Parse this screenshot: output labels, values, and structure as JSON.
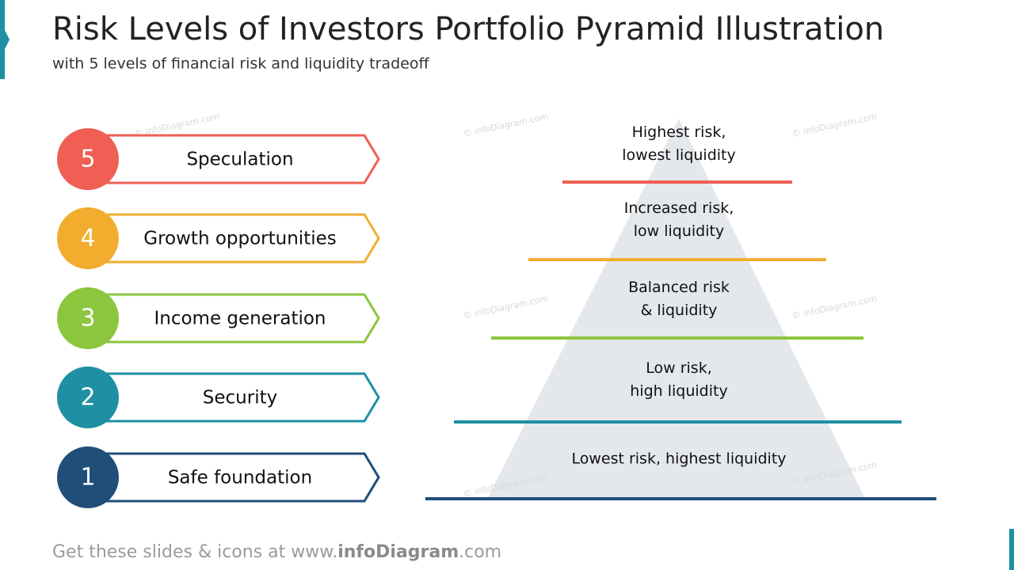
{
  "header": {
    "title": "Risk Levels of Investors Portfolio Pyramid Illustration",
    "subtitle": "with 5 levels of financial  risk and liquidity  tradeoff"
  },
  "levels": [
    {
      "number": "5",
      "label": "Speculation",
      "color": "#ef5f54",
      "description": [
        "Highest risk,",
        "lowest liquidity"
      ]
    },
    {
      "number": "4",
      "label": "Growth opportunities",
      "color": "#f2ad2f",
      "description": [
        "Increased risk,",
        "low liquidity"
      ]
    },
    {
      "number": "3",
      "label": "Income generation",
      "color": "#8cc63f",
      "description": [
        "Balanced risk",
        "& liquidity"
      ]
    },
    {
      "number": "2",
      "label": "Security",
      "color": "#1f8fa3",
      "description": [
        "Low risk,",
        "high liquidity"
      ]
    },
    {
      "number": "1",
      "label": "Safe foundation",
      "color": "#1f4e79",
      "description": [
        "Lowest risk, highest liquidity"
      ]
    }
  ],
  "watermark": "© infoDiagram.com",
  "footer": {
    "prefix": "Get these slides & icons at www.",
    "brand": "infoDiagram",
    "suffix": ".com"
  }
}
